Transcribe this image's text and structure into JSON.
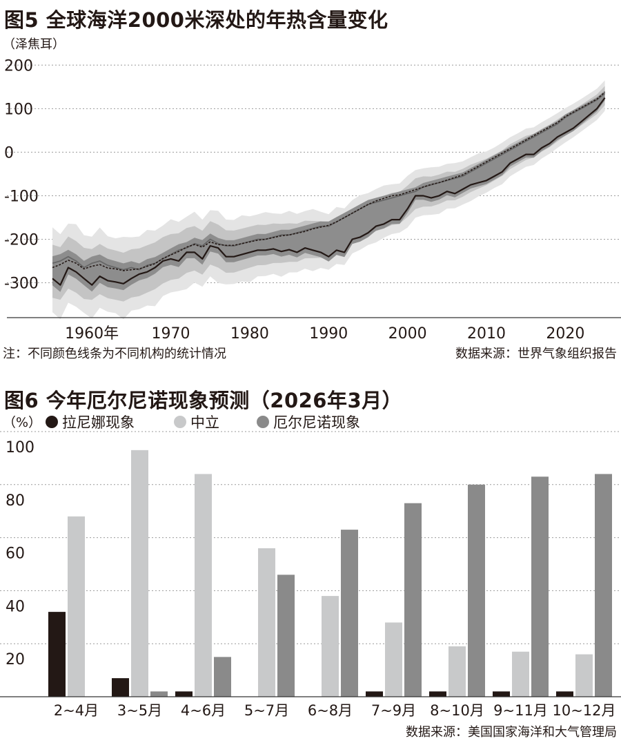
{
  "colors": {
    "text": "#231815",
    "band_outer": "#e4e4e4",
    "band_mid": "#c4c4c4",
    "band_inner": "#8d8d8d",
    "line_dark": "#231815",
    "line_mid": "#666666",
    "bar_lanina": "#231815",
    "bar_neutral": "#c8c9ca",
    "bar_elnino": "#8a8a8a",
    "grid": "#9a9a9a"
  },
  "fig5": {
    "title": "图5 全球海洋2000米深处的年热含量变化",
    "unit": "（泽焦耳）",
    "note": "注：不同颜色线条为不同机构的统计情况",
    "source": "数据来源：世界气象组织报告"
  },
  "fig6": {
    "title": "图6 今年厄尔尼诺现象预测（2026年3月）",
    "unit": "（%）",
    "source": "数据来源：美国国家海洋和大气管理局"
  },
  "chart_data": [
    {
      "type": "line",
      "title": "图5 全球海洋2000米深处的年热含量变化",
      "ylabel": "泽焦耳",
      "xlim": [
        1955,
        2026
      ],
      "ylim": [
        -380,
        210
      ],
      "yticks": [
        200,
        100,
        0,
        -100,
        -200,
        -300
      ],
      "yticks_labels": [
        "200",
        "100",
        "0",
        "-100",
        "-200",
        "-300"
      ],
      "xticks": [
        1960,
        1970,
        1980,
        1990,
        2000,
        2010,
        2020
      ],
      "xticks_labels": [
        "1960年",
        "1970",
        "1980",
        "1990",
        "2000",
        "2010",
        "2020"
      ],
      "grid": "horizontal dotted",
      "x": [
        1955,
        1956,
        1957,
        1958,
        1959,
        1960,
        1961,
        1962,
        1963,
        1964,
        1965,
        1966,
        1967,
        1968,
        1969,
        1970,
        1971,
        1972,
        1973,
        1974,
        1975,
        1976,
        1977,
        1978,
        1979,
        1980,
        1981,
        1982,
        1983,
        1984,
        1985,
        1986,
        1987,
        1988,
        1989,
        1990,
        1991,
        1992,
        1993,
        1994,
        1995,
        1996,
        1997,
        1998,
        1999,
        2000,
        2001,
        2002,
        2003,
        2004,
        2005,
        2006,
        2007,
        2008,
        2009,
        2010,
        2011,
        2012,
        2013,
        2014,
        2015,
        2016,
        2017,
        2018,
        2019,
        2020,
        2021,
        2022,
        2023,
        2024,
        2025
      ],
      "series": [
        {
          "style": "solid-dark",
          "values": [
            -290,
            -305,
            -265,
            -275,
            -290,
            -305,
            -285,
            -295,
            -298,
            -302,
            -290,
            -280,
            -275,
            -265,
            -250,
            -245,
            -250,
            -230,
            -230,
            -245,
            -215,
            -220,
            -240,
            -240,
            -235,
            -230,
            -225,
            -225,
            -222,
            -228,
            -224,
            -230,
            -220,
            -225,
            -230,
            -240,
            -225,
            -230,
            -200,
            -195,
            -185,
            -170,
            -165,
            -155,
            -155,
            -130,
            -100,
            -100,
            -105,
            -100,
            -90,
            -95,
            -85,
            -75,
            -70,
            -65,
            -55,
            -45,
            -25,
            -15,
            -5,
            -5,
            10,
            20,
            35,
            45,
            55,
            70,
            85,
            100,
            125
          ]
        },
        {
          "style": "solid-mid",
          "values": [
            -255,
            -250,
            -240,
            -250,
            -265,
            -255,
            -250,
            -260,
            -265,
            -270,
            -265,
            -270,
            -260,
            -255,
            -245,
            -235,
            -225,
            -220,
            -210,
            -215,
            -200,
            -210,
            -215,
            -215,
            -210,
            -205,
            -200,
            -200,
            -195,
            -190,
            -190,
            -185,
            -180,
            -175,
            -170,
            -170,
            -160,
            -150,
            -140,
            -130,
            -120,
            -115,
            -110,
            -105,
            -100,
            -95,
            -90,
            -80,
            -75,
            -70,
            -65,
            -60,
            -55,
            -45,
            -35,
            -25,
            -15,
            -5,
            5,
            15,
            25,
            35,
            45,
            55,
            65,
            80,
            90,
            100,
            110,
            120,
            135
          ]
        },
        {
          "style": "dotted",
          "values": [
            -265,
            -258,
            -248,
            -255,
            -268,
            -262,
            -258,
            -266,
            -268,
            -272,
            -270,
            -268,
            -262,
            -256,
            -244,
            -236,
            -228,
            -218,
            -212,
            -218,
            -206,
            -212,
            -214,
            -214,
            -210,
            -206,
            -202,
            -200,
            -196,
            -192,
            -190,
            -186,
            -182,
            -176,
            -172,
            -168,
            -160,
            -150,
            -140,
            -130,
            -120,
            -112,
            -106,
            -100,
            -98,
            -92,
            -86,
            -80,
            -74,
            -70,
            -64,
            -58,
            -52,
            -42,
            -32,
            -22,
            -12,
            -2,
            8,
            18,
            28,
            38,
            48,
            58,
            68,
            82,
            92,
            102,
            112,
            122,
            138
          ]
        }
      ]
    },
    {
      "type": "bar",
      "title": "图6 今年厄尔尼诺现象预测（2026年3月）",
      "ylabel": "%",
      "ylim": [
        0,
        100
      ],
      "yticks": [
        100,
        80,
        60,
        40,
        20
      ],
      "categories": [
        "2~4月",
        "3~5月",
        "4~6月",
        "5~7月",
        "6~8月",
        "7~9月",
        "8~10月",
        "9~11月",
        "10~12月"
      ],
      "series": [
        {
          "name": "拉尼娜现象",
          "values": [
            32,
            7,
            2,
            0,
            0,
            2,
            2,
            2,
            2
          ]
        },
        {
          "name": "中立",
          "values": [
            68,
            93,
            84,
            56,
            38,
            28,
            19,
            17,
            16
          ]
        },
        {
          "name": "厄尔尼诺现象",
          "values": [
            0,
            2,
            15,
            46,
            63,
            73,
            80,
            83,
            84
          ]
        }
      ]
    }
  ]
}
